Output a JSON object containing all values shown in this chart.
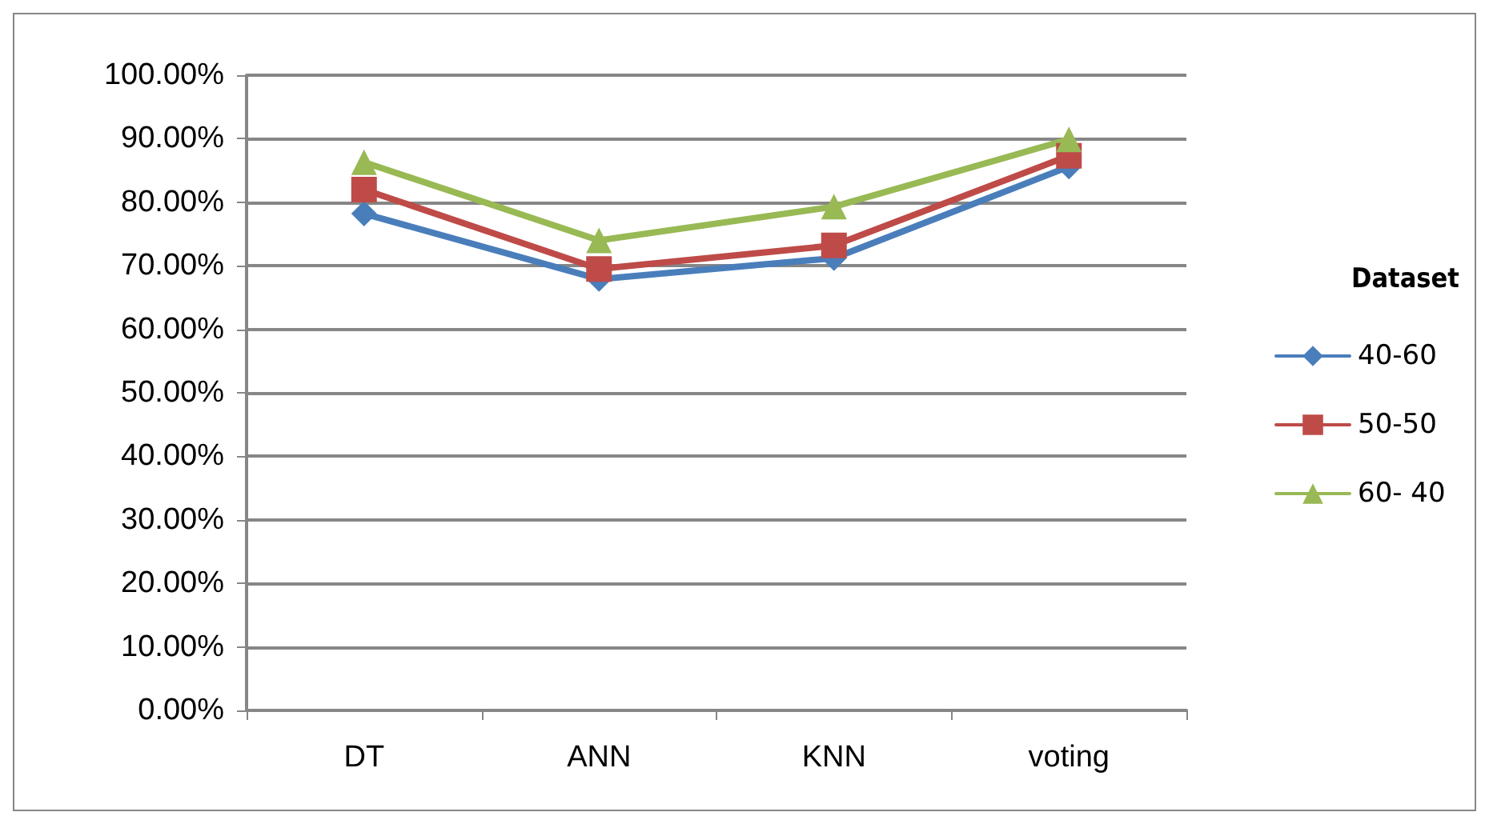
{
  "chart_data": {
    "type": "line",
    "categories": [
      "DT",
      "ANN",
      "KNN",
      "voting"
    ],
    "series": [
      {
        "name": "40-60",
        "color": "#4a7ebb",
        "marker": "diamond",
        "values": [
          78.2,
          67.9,
          71.2,
          85.6
        ]
      },
      {
        "name": "50-50",
        "color": "#be4b48",
        "marker": "square",
        "values": [
          82.0,
          69.5,
          73.2,
          87.3
        ]
      },
      {
        "name": "60- 40",
        "color": "#98b954",
        "marker": "triangle",
        "values": [
          86.3,
          74.0,
          79.3,
          89.9
        ]
      }
    ],
    "ylim": [
      0,
      100
    ],
    "yticks": [
      {
        "value": 0,
        "label": "0.00%"
      },
      {
        "value": 10,
        "label": "10.00%"
      },
      {
        "value": 20,
        "label": "20.00%"
      },
      {
        "value": 30,
        "label": "30.00%"
      },
      {
        "value": 40,
        "label": "40.00%"
      },
      {
        "value": 50,
        "label": "50.00%"
      },
      {
        "value": 60,
        "label": "60.00%"
      },
      {
        "value": 70,
        "label": "70.00%"
      },
      {
        "value": 80,
        "label": "80.00%"
      },
      {
        "value": 90,
        "label": "90.00%"
      },
      {
        "value": 100,
        "label": "100.00%"
      }
    ],
    "grid": "y",
    "legend": "right",
    "legend_title": "Dataset",
    "line_style": "solid"
  }
}
